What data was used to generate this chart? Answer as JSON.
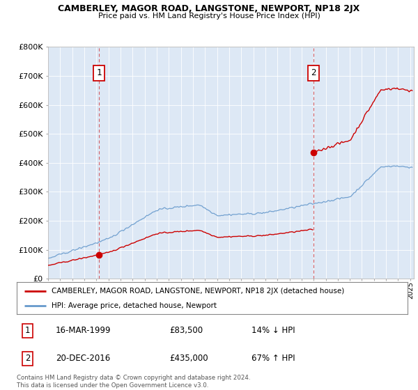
{
  "title": "CAMBERLEY, MAGOR ROAD, LANGSTONE, NEWPORT, NP18 2JX",
  "subtitle": "Price paid vs. HM Land Registry's House Price Index (HPI)",
  "ylabel_ticks": [
    "£0",
    "£100K",
    "£200K",
    "£300K",
    "£400K",
    "£500K",
    "£600K",
    "£700K",
    "£800K"
  ],
  "ylim": [
    0,
    800000
  ],
  "xlim_start": 1995.0,
  "xlim_end": 2025.3,
  "property_color": "#cc0000",
  "hpi_color": "#6699cc",
  "sale1_x": 1999.2,
  "sale1_y": 83500,
  "sale1_label": "1",
  "sale2_x": 2016.97,
  "sale2_y": 435000,
  "sale2_label": "2",
  "legend_property": "CAMBERLEY, MAGOR ROAD, LANGSTONE, NEWPORT, NP18 2JX (detached house)",
  "legend_hpi": "HPI: Average price, detached house, Newport",
  "table_row1": [
    "1",
    "16-MAR-1999",
    "£83,500",
    "14% ↓ HPI"
  ],
  "table_row2": [
    "2",
    "20-DEC-2016",
    "£435,000",
    "67% ↑ HPI"
  ],
  "footer": "Contains HM Land Registry data © Crown copyright and database right 2024.\nThis data is licensed under the Open Government Licence v3.0.",
  "background_color": "#ffffff",
  "plot_bg_color": "#dde8f5",
  "grid_color": "#ffffff"
}
